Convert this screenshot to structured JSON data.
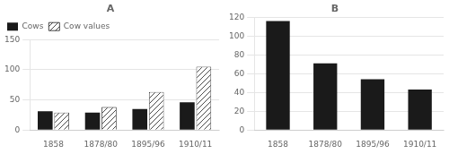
{
  "chart_data": [
    {
      "type": "bar",
      "title": "A",
      "categories": [
        "1858",
        "1878/80",
        "1895/96",
        "1910/11"
      ],
      "series": [
        {
          "name": "Cows",
          "color": "#1a1a1a",
          "values": [
            31,
            29,
            35,
            46
          ]
        },
        {
          "name": "Cow values",
          "color": "#ffffff",
          "values": [
            29,
            38,
            63,
            105
          ]
        }
      ],
      "ylim": [
        0,
        150
      ],
      "yticks": [
        0,
        50,
        100,
        150
      ],
      "grid": true,
      "legend": "upper left"
    },
    {
      "type": "bar",
      "title": "B",
      "categories": [
        "1858",
        "1878/80",
        "1895/96",
        "1910/11"
      ],
      "values": [
        116,
        71,
        54,
        43
      ],
      "color": "#1a1a1a",
      "ylim": [
        0,
        120
      ],
      "yticks": [
        0,
        20,
        40,
        60,
        80,
        100,
        120
      ],
      "grid": true
    }
  ]
}
